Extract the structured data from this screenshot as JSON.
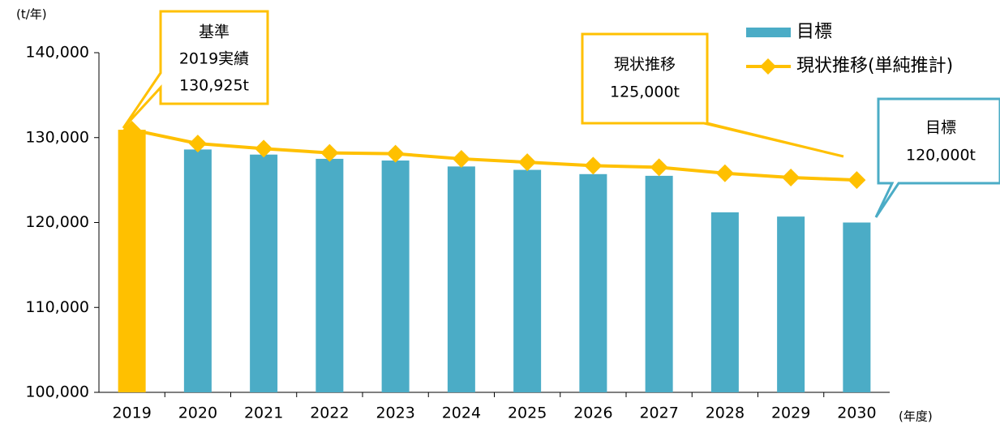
{
  "chart_data": {
    "type": "bar_line",
    "y_label": "(t/年)",
    "x_label": "(年度)",
    "categories": [
      "2019",
      "2020",
      "2021",
      "2022",
      "2023",
      "2024",
      "2025",
      "2026",
      "2027",
      "2028",
      "2029",
      "2030"
    ],
    "series": [
      {
        "name": "目標",
        "type": "bar",
        "color": "#4bacc6",
        "bar_colors": [
          "#ffc000",
          "#4bacc6",
          "#4bacc6",
          "#4bacc6",
          "#4bacc6",
          "#4bacc6",
          "#4bacc6",
          "#4bacc6",
          "#4bacc6",
          "#4bacc6",
          "#4bacc6",
          "#4bacc6"
        ],
        "values": [
          130925,
          128600,
          128000,
          127500,
          127300,
          126600,
          126200,
          125700,
          125500,
          121200,
          120700,
          120000
        ]
      },
      {
        "name": "現状推移(単純推計)",
        "type": "line",
        "color": "#ffc000",
        "values": [
          130925,
          129300,
          128700,
          128200,
          128100,
          127500,
          127100,
          126700,
          126500,
          125800,
          125300,
          125000
        ]
      }
    ],
    "ylim": [
      100000,
      140000
    ],
    "yticks": [
      {
        "value": 100000,
        "label": "100,000"
      },
      {
        "value": 110000,
        "label": "110,000"
      },
      {
        "value": 120000,
        "label": "120,000"
      },
      {
        "value": 130000,
        "label": "130,000"
      },
      {
        "value": 140000,
        "label": "140,000"
      }
    ],
    "annotations": [
      {
        "lines": [
          "基準",
          "2019実績",
          "130,925t"
        ],
        "color": "#ffc000"
      },
      {
        "lines": [
          "現状推移",
          "125,000t"
        ],
        "color": "#ffc000"
      },
      {
        "lines": [
          "目標",
          "120,000t"
        ],
        "color": "#4bacc6"
      }
    ]
  }
}
